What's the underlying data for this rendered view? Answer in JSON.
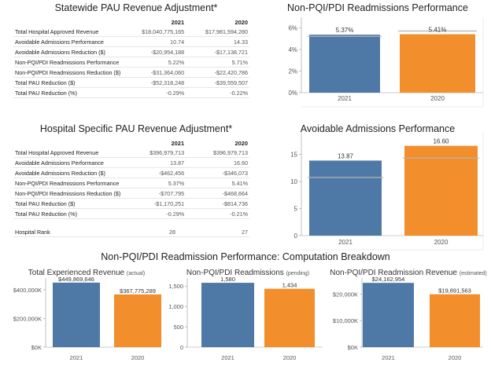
{
  "statewide": {
    "title": "Statewide PAU Revenue Adjustment*",
    "col_2021": "2021",
    "col_2020": "2020",
    "rows": [
      {
        "label": "Total Hospital Approved Revenue",
        "v2021": "$18,040,775,165",
        "v2020": "$17,981,594,280"
      },
      {
        "label": "Avoidable Admissions Performance",
        "v2021": "10.74",
        "v2020": "14.33"
      },
      {
        "label": "Avoidable Admissions Reduction ($)",
        "v2021": "-$20,954,188",
        "v2020": "-$17,138,721"
      },
      {
        "label": "Non-PQI/PDI Readmissions Performance",
        "v2021": "5.22%",
        "v2020": "5.71%"
      },
      {
        "label": "Non-PQI/PDI Readmissions Reduction ($)",
        "v2021": "-$31,364,060",
        "v2020": "-$22,420,786"
      },
      {
        "label": "Total PAU Reduction ($)",
        "v2021": "-$52,318,248",
        "v2020": "-$39,559,507"
      },
      {
        "label": "Total PAU Reduction (%)",
        "v2021": "-0.29%",
        "v2020": "-0.22%"
      }
    ]
  },
  "hospital": {
    "title": "Hospital Specific PAU Revenue Adjustment*",
    "col_2021": "2021",
    "col_2020": "2020",
    "rows": [
      {
        "label": "Total Hospital Approved Revenue",
        "v2021": "$396,979,713",
        "v2020": "$396,979,713"
      },
      {
        "label": "Avoidable Admissions Performance",
        "v2021": "13.87",
        "v2020": "16.60"
      },
      {
        "label": "Avoidable Admissions Reduction ($)",
        "v2021": "-$462,456",
        "v2020": "-$346,073"
      },
      {
        "label": "Non-PQI/PDI Readmissions Performance",
        "v2021": "5.37%",
        "v2020": "5.41%"
      },
      {
        "label": "Non-PQI/PDI Readmissions Reduction ($)",
        "v2021": "-$707,795",
        "v2020": "-$468,664"
      },
      {
        "label": "Total PAU Reduction ($)",
        "v2021": "-$1,170,251",
        "v2020": "-$814,736"
      },
      {
        "label": "Total PAU Reduction (%)",
        "v2021": "-0.29%",
        "v2020": "-0.21%"
      }
    ],
    "rank_label": "Hospital Rank",
    "rank_2021": "28",
    "rank_2020": "27"
  },
  "breakdown_title": "Non-PQI/PDI Readmission Performance: Computation Breakdown",
  "colors": {
    "blue": "#4e79a7",
    "orange": "#f28e2b",
    "refline": "#b4b4b4",
    "axis": "#999999",
    "grid": "#e9e9e9"
  },
  "chart_data": [
    {
      "id": "readmissions-performance",
      "type": "bar",
      "title": "Non-PQI/PDI Readmissions Performance",
      "categories": [
        "2021",
        "2020"
      ],
      "values": [
        5.37,
        5.41
      ],
      "value_labels": [
        "5.37%",
        "5.41%"
      ],
      "reference_values": [
        5.22,
        5.71
      ],
      "ylim": [
        0,
        6.4
      ],
      "yticks": [
        0,
        2,
        4,
        6
      ],
      "ytick_labels": [
        "0%",
        "2%",
        "4%",
        "6%"
      ]
    },
    {
      "id": "avoidable-admissions-performance",
      "type": "bar",
      "title": "Avoidable Admissions Performance",
      "categories": [
        "2021",
        "2020"
      ],
      "values": [
        13.87,
        16.6
      ],
      "value_labels": [
        "13.87",
        "16.60"
      ],
      "reference_values": [
        10.74,
        14.33
      ],
      "ylim": [
        0,
        18
      ],
      "yticks": [
        0,
        5,
        10,
        15
      ],
      "ytick_labels": [
        "0",
        "5",
        "10",
        "15"
      ]
    },
    {
      "id": "experienced-revenue",
      "type": "bar",
      "title": "Total Experienced Revenue",
      "title_note": "(actual)",
      "categories": [
        "2021",
        "2020"
      ],
      "values": [
        449869646,
        367775289
      ],
      "value_labels": [
        "$449,869,646",
        "$367,775,289"
      ],
      "ylim": [
        0,
        460000000
      ],
      "yticks": [
        0,
        200000000,
        400000000
      ],
      "ytick_labels": [
        "$0K",
        "$200,000K",
        "$400,000K"
      ]
    },
    {
      "id": "readmissions-pending",
      "type": "bar",
      "title": "Non-PQI/PDI Readmissions",
      "title_note": "(pending)",
      "categories": [
        "2021",
        "2020"
      ],
      "values": [
        1580,
        1434
      ],
      "value_labels": [
        "1,580",
        "1,434"
      ],
      "ylim": [
        0,
        1620
      ],
      "yticks": [
        0,
        500,
        1000,
        1500
      ],
      "ytick_labels": [
        "0",
        "500",
        "1,000",
        "1,500"
      ]
    },
    {
      "id": "readmission-revenue",
      "type": "bar",
      "title": "Non-PQI/PDI Readmission Revenue",
      "title_note": "(estimated)",
      "categories": [
        "2021",
        "2020"
      ],
      "values": [
        24162954,
        19891563
      ],
      "value_labels": [
        "$24,162,954",
        "$19,891,563"
      ],
      "ylim": [
        0,
        24800000
      ],
      "yticks": [
        0,
        10000000,
        20000000
      ],
      "ytick_labels": [
        "$0K",
        "$10,000K",
        "$20,000K"
      ]
    }
  ]
}
